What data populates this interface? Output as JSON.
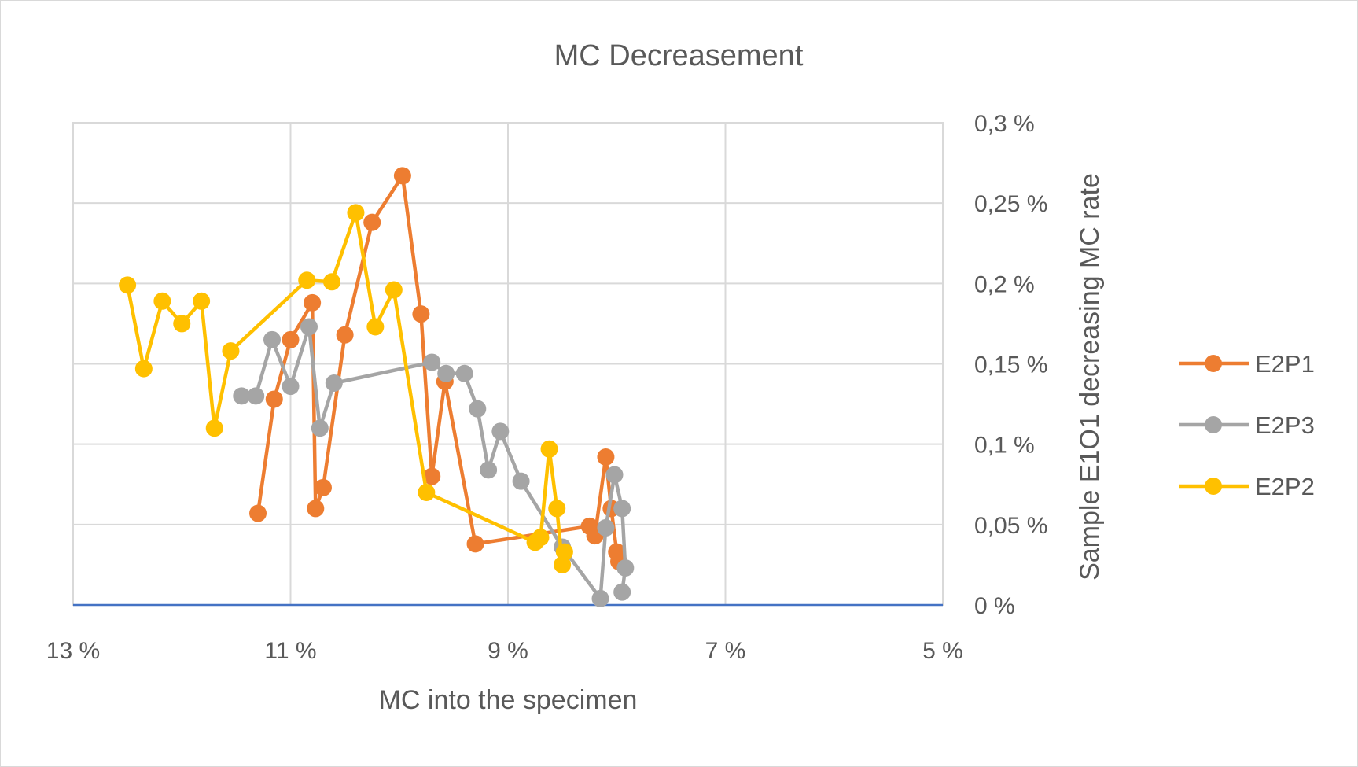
{
  "chart_data": {
    "type": "scatter",
    "title": "MC Decreasement",
    "xlabel": "MC into the specimen",
    "ylabel": "Sample E1O1 decreasing MC rate",
    "x_reversed": true,
    "xlim": [
      5,
      13
    ],
    "ylim": [
      0,
      0.3
    ],
    "x_ticks": [
      13,
      11,
      9,
      7,
      5
    ],
    "x_tick_labels": [
      "13 %",
      "11 %",
      "9 %",
      "7 %",
      "5 %"
    ],
    "y_ticks": [
      0,
      0.05,
      0.1,
      0.15,
      0.2,
      0.25,
      0.3
    ],
    "y_tick_labels": [
      "0 %",
      "0,05 %",
      "0,1 %",
      "0,15 %",
      "0,2 %",
      "0,25 %",
      "0,3 %"
    ],
    "y_axis_side": "right",
    "grid": true,
    "legend_position": "right",
    "series": [
      {
        "name": "E2P1",
        "color": "#ed7d31",
        "points": [
          [
            11.3,
            0.057
          ],
          [
            11.15,
            0.128
          ],
          [
            11.0,
            0.165
          ],
          [
            10.8,
            0.188
          ],
          [
            10.77,
            0.06
          ],
          [
            10.7,
            0.073
          ],
          [
            10.5,
            0.168
          ],
          [
            10.25,
            0.238
          ],
          [
            9.97,
            0.267
          ],
          [
            9.8,
            0.181
          ],
          [
            9.7,
            0.08
          ],
          [
            9.58,
            0.139
          ],
          [
            9.3,
            0.038
          ],
          [
            8.25,
            0.049
          ],
          [
            8.2,
            0.043
          ],
          [
            8.1,
            0.092
          ],
          [
            8.05,
            0.06
          ],
          [
            8.0,
            0.033
          ],
          [
            7.98,
            0.027
          ]
        ]
      },
      {
        "name": "E2P3",
        "color": "#a5a5a5",
        "points": [
          [
            11.45,
            0.13
          ],
          [
            11.32,
            0.13
          ],
          [
            11.17,
            0.165
          ],
          [
            11.0,
            0.136
          ],
          [
            10.83,
            0.173
          ],
          [
            10.73,
            0.11
          ],
          [
            10.6,
            0.138
          ],
          [
            9.7,
            0.151
          ],
          [
            9.57,
            0.144
          ],
          [
            9.4,
            0.144
          ],
          [
            9.28,
            0.122
          ],
          [
            9.18,
            0.084
          ],
          [
            9.07,
            0.108
          ],
          [
            8.88,
            0.077
          ],
          [
            8.5,
            0.036
          ],
          [
            8.15,
            0.004
          ],
          [
            8.1,
            0.048
          ],
          [
            8.02,
            0.081
          ],
          [
            7.95,
            0.06
          ],
          [
            7.92,
            0.023
          ],
          [
            7.95,
            0.008
          ]
        ]
      },
      {
        "name": "E2P2",
        "color": "#ffc000",
        "points": [
          [
            12.5,
            0.199
          ],
          [
            12.35,
            0.147
          ],
          [
            12.18,
            0.189
          ],
          [
            12.0,
            0.175
          ],
          [
            11.82,
            0.189
          ],
          [
            11.7,
            0.11
          ],
          [
            11.55,
            0.158
          ],
          [
            10.85,
            0.202
          ],
          [
            10.62,
            0.201
          ],
          [
            10.4,
            0.244
          ],
          [
            10.22,
            0.173
          ],
          [
            10.05,
            0.196
          ],
          [
            9.75,
            0.07
          ],
          [
            8.75,
            0.039
          ],
          [
            8.7,
            0.042
          ],
          [
            8.62,
            0.097
          ],
          [
            8.55,
            0.06
          ],
          [
            8.5,
            0.025
          ],
          [
            8.48,
            0.033
          ]
        ]
      }
    ]
  }
}
